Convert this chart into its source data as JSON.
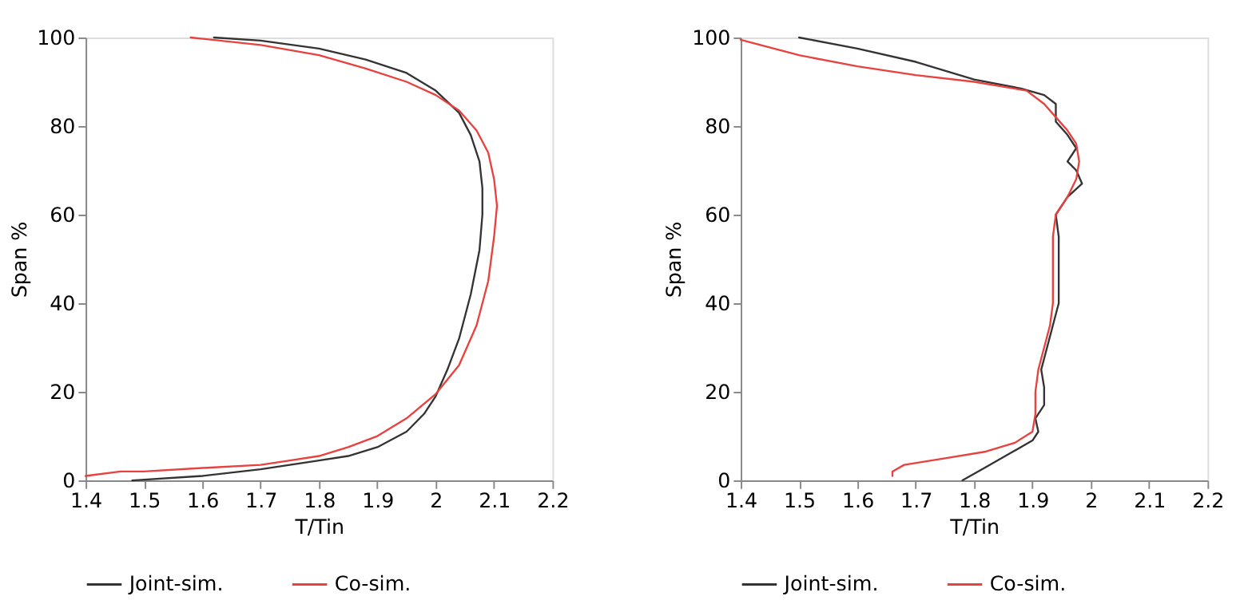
{
  "chart_data": [
    {
      "type": "line",
      "xlabel": "T/Tin",
      "ylabel": "Span %",
      "xlim": [
        1.4,
        2.2
      ],
      "ylim": [
        0,
        100
      ],
      "xticks": [
        1.4,
        1.5,
        1.6,
        1.7,
        1.8,
        1.9,
        2,
        2.1,
        2.2
      ],
      "yticks": [
        0,
        20,
        40,
        60,
        80,
        100
      ],
      "grid": false,
      "legend": "bottom",
      "line_style": "solid",
      "marker": "none",
      "series": [
        {
          "name": "Joint-sim.",
          "color": "#333333",
          "x": [
            1.48,
            1.6,
            1.7,
            1.75,
            1.8,
            1.85,
            1.9,
            1.95,
            1.98,
            2.0,
            2.02,
            2.04,
            2.06,
            2.075,
            2.08,
            2.08,
            2.075,
            2.06,
            2.04,
            2.0,
            1.95,
            1.88,
            1.8,
            1.7,
            1.62
          ],
          "values": [
            0,
            1,
            2.5,
            3.5,
            4.5,
            5.5,
            7.5,
            11,
            15,
            19,
            25,
            32,
            42,
            52,
            60,
            66,
            72,
            78,
            83,
            88,
            92,
            95,
            97.5,
            99.3,
            100
          ]
        },
        {
          "name": "Co-sim.",
          "color": "#e8413e",
          "x": [
            1.4,
            1.46,
            1.5,
            1.6,
            1.7,
            1.75,
            1.8,
            1.85,
            1.9,
            1.95,
            2.0,
            2.04,
            2.07,
            2.09,
            2.1,
            2.105,
            2.1,
            2.09,
            2.07,
            2.04,
            2.0,
            1.95,
            1.88,
            1.8,
            1.7,
            1.58
          ],
          "values": [
            1,
            2,
            2,
            2.8,
            3.5,
            4.5,
            5.5,
            7.5,
            10,
            14,
            19.5,
            26,
            35,
            45,
            55,
            62,
            68,
            74,
            79,
            83.5,
            87,
            90,
            93,
            96,
            98.3,
            100
          ]
        }
      ]
    },
    {
      "type": "line",
      "xlabel": "T/Tin",
      "ylabel": "Span %",
      "xlim": [
        1.4,
        2.2
      ],
      "ylim": [
        0,
        100
      ],
      "xticks": [
        1.4,
        1.5,
        1.6,
        1.7,
        1.8,
        1.9,
        2,
        2.1,
        2.2
      ],
      "yticks": [
        0,
        20,
        40,
        60,
        80,
        100
      ],
      "grid": false,
      "legend": "bottom",
      "line_style": "solid",
      "marker": "none",
      "series": [
        {
          "name": "Joint-sim.",
          "color": "#333333",
          "x": [
            1.78,
            1.82,
            1.86,
            1.9,
            1.91,
            1.905,
            1.92,
            1.92,
            1.915,
            1.925,
            1.935,
            1.945,
            1.945,
            1.945,
            1.94,
            1.96,
            1.985,
            1.975,
            1.96,
            1.975,
            1.96,
            1.94,
            1.94,
            1.92,
            1.88,
            1.8,
            1.7,
            1.6,
            1.5
          ],
          "values": [
            0,
            3,
            6,
            9,
            11,
            14,
            17,
            21,
            25,
            30,
            35,
            40,
            47,
            55,
            60,
            64,
            67,
            70,
            72,
            75,
            78,
            81,
            85,
            87,
            88.5,
            90.5,
            94.5,
            97.5,
            100
          ]
        },
        {
          "name": "Co-sim.",
          "color": "#e8413e",
          "x": [
            1.66,
            1.66,
            1.68,
            1.75,
            1.82,
            1.87,
            1.9,
            1.905,
            1.905,
            1.91,
            1.92,
            1.93,
            1.935,
            1.935,
            1.935,
            1.935,
            1.94,
            1.96,
            1.975,
            1.98,
            1.975,
            1.96,
            1.94,
            1.92,
            1.89,
            1.8,
            1.7,
            1.6,
            1.5,
            1.4
          ],
          "values": [
            1,
            2,
            3.5,
            5,
            6.5,
            8.5,
            11,
            15,
            20,
            25,
            30,
            35,
            40,
            45,
            50,
            55,
            60,
            64,
            68,
            72,
            76,
            79,
            82,
            85,
            88,
            90,
            91.5,
            93.5,
            96,
            99.5
          ]
        }
      ]
    }
  ]
}
